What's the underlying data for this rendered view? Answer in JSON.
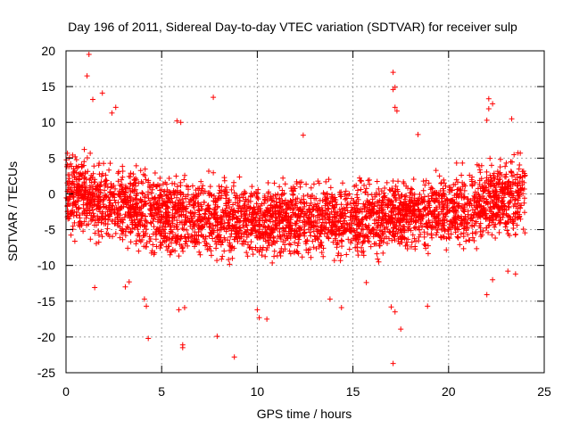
{
  "chart_data": {
    "type": "scatter",
    "title": "Day 196 of 2011, Sidereal Day-to-day VTEC variation (SDTVAR) for receiver sulp",
    "xlabel": "GPS time / hours",
    "ylabel": "SDTVAR / TECUs",
    "xlim": [
      0,
      25
    ],
    "ylim": [
      -25,
      20
    ],
    "x_ticks": [
      0,
      5,
      10,
      15,
      20,
      25
    ],
    "y_ticks": [
      -25,
      -20,
      -15,
      -10,
      -5,
      0,
      5,
      10,
      15,
      20
    ],
    "x_tick_labels": [
      "0",
      "5",
      "10",
      "15",
      "20",
      "25"
    ],
    "y_tick_labels": [
      "-25",
      "-20",
      "-15",
      "-10",
      "-5",
      "0",
      "5",
      "10",
      "15",
      "20"
    ],
    "grid": true,
    "marker": "+",
    "series": [
      {
        "name": "SDTVAR",
        "color": "#ff0000",
        "description": "dense band of points between about -9 and +6 TECU over 0-24 h, centered near 0 at the edges and near -3 around midday",
        "x_range": [
          0,
          24
        ],
        "core_band": [
          {
            "x": 0,
            "low": -6,
            "high": 6
          },
          {
            "x": 2,
            "low": -7,
            "high": 5
          },
          {
            "x": 5,
            "low": -9,
            "high": 3
          },
          {
            "x": 10,
            "low": -9,
            "high": 2
          },
          {
            "x": 15,
            "low": -9,
            "high": 2
          },
          {
            "x": 20,
            "low": -8,
            "high": 3
          },
          {
            "x": 24,
            "low": -6,
            "high": 6
          }
        ],
        "outliers": [
          [
            1.2,
            19.5
          ],
          [
            1.1,
            16.5
          ],
          [
            1.4,
            13.2
          ],
          [
            1.9,
            14.1
          ],
          [
            2.6,
            12.1
          ],
          [
            2.4,
            11.3
          ],
          [
            7.7,
            13.5
          ],
          [
            5.8,
            10.2
          ],
          [
            6.0,
            10.0
          ],
          [
            12.4,
            8.2
          ],
          [
            17.1,
            17.0
          ],
          [
            17.2,
            14.9
          ],
          [
            17.1,
            14.6
          ],
          [
            17.2,
            12.1
          ],
          [
            17.3,
            11.6
          ],
          [
            22.1,
            13.3
          ],
          [
            22.3,
            12.6
          ],
          [
            22.1,
            11.9
          ],
          [
            23.3,
            10.5
          ],
          [
            22.0,
            10.3
          ],
          [
            18.4,
            8.3
          ],
          [
            4.3,
            -20.2
          ],
          [
            6.1,
            -21.1
          ],
          [
            6.1,
            -21.5
          ],
          [
            7.9,
            -19.9
          ],
          [
            8.8,
            -22.8
          ],
          [
            10.1,
            -17.3
          ],
          [
            10.5,
            -17.5
          ],
          [
            10.0,
            -16.2
          ],
          [
            17.1,
            -23.7
          ],
          [
            17.5,
            -18.9
          ],
          [
            17.2,
            -16.5
          ],
          [
            17.0,
            -15.8
          ],
          [
            4.2,
            -15.7
          ],
          [
            4.1,
            -14.7
          ],
          [
            6.2,
            -15.9
          ],
          [
            5.9,
            -16.2
          ],
          [
            14.4,
            -15.9
          ],
          [
            13.8,
            -14.7
          ],
          [
            18.9,
            -15.7
          ],
          [
            22.0,
            -14.1
          ],
          [
            23.1,
            -10.8
          ],
          [
            1.5,
            -13.1
          ],
          [
            3.1,
            -13.0
          ],
          [
            3.3,
            -12.3
          ],
          [
            15.7,
            -12.4
          ],
          [
            22.3,
            -12.0
          ],
          [
            23.5,
            -11.2
          ]
        ]
      }
    ]
  }
}
